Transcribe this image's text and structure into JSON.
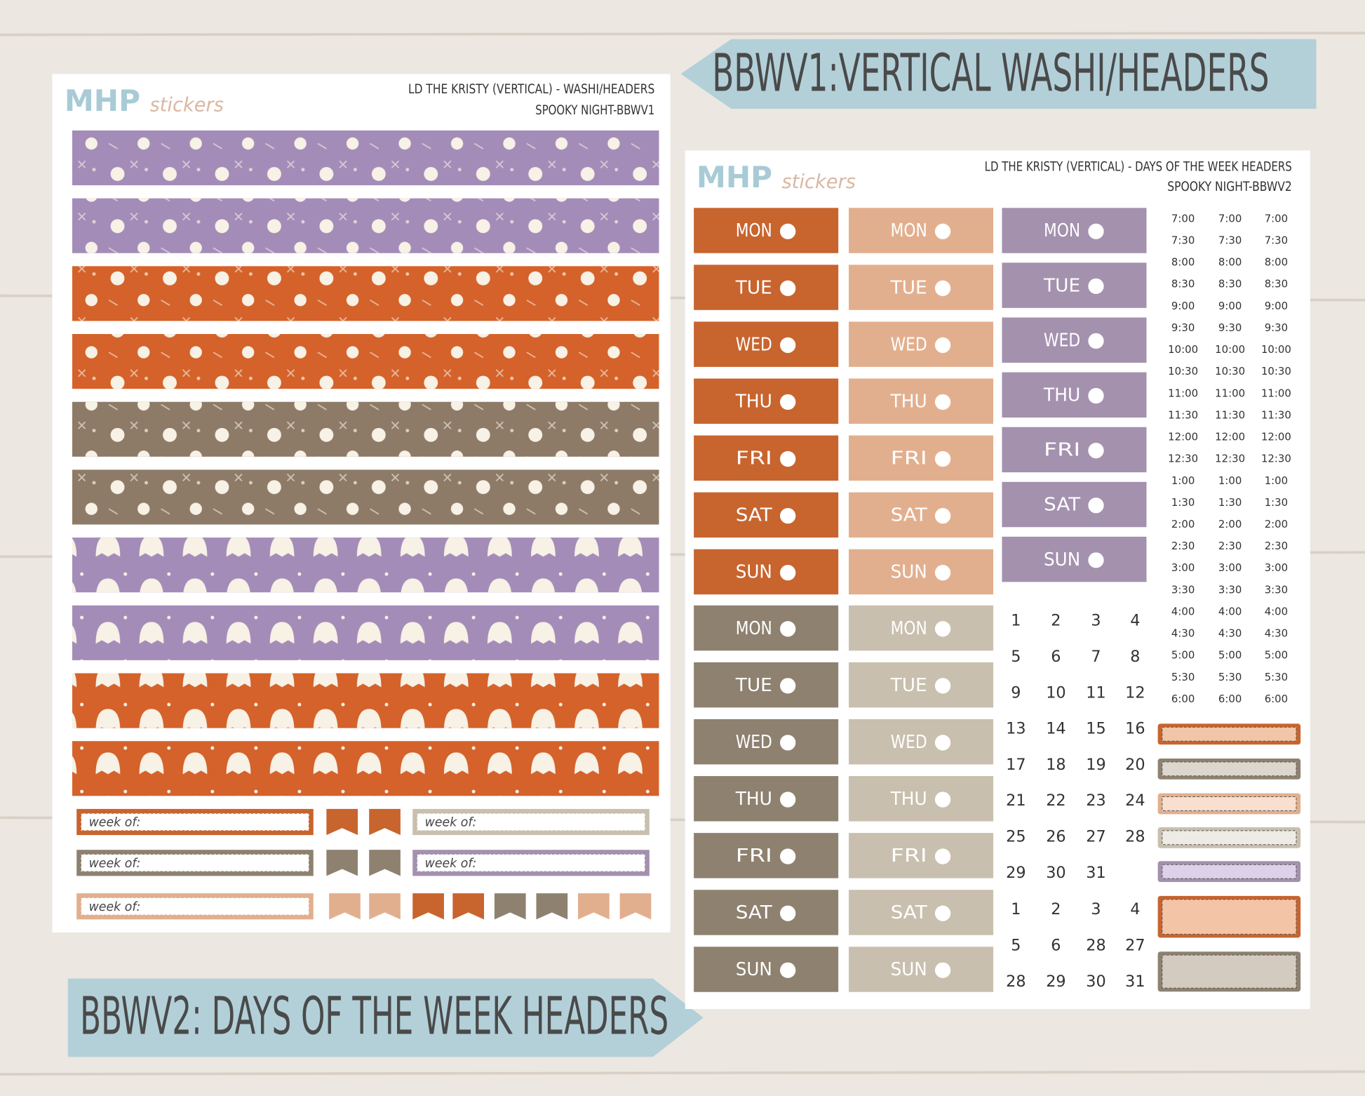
{
  "banners": [
    "BBWV1:VERTICAL WASHI/HEADERS",
    "BBWV2: DAYS OF THE WEEK HEADERS"
  ],
  "logo": {
    "brand": "MHP",
    "word": "stickers"
  },
  "sheet1": {
    "title": "LD THE KRISTY (VERTICAL) - WASHI/HEADERS",
    "code": "SPOOKY NIGHT-BBWV1",
    "week_label": "week of:"
  },
  "sheet2": {
    "title": "LD THE KRISTY (VERTICAL) - DAYS OF THE WEEK HEADERS",
    "code": "SPOOKY NIGHT-BBWV2",
    "days": [
      "MON",
      "TUE",
      "WED",
      "THU",
      "FRI",
      "SAT",
      "SUN"
    ],
    "times": [
      "7:00",
      "7:30",
      "8:00",
      "8:30",
      "9:00",
      "9:30",
      "10:00",
      "10:30",
      "11:00",
      "11:30",
      "12:00",
      "12:30",
      "1:00",
      "1:30",
      "2:00",
      "2:30",
      "3:00",
      "3:30",
      "4:00",
      "4:30",
      "5:00",
      "5:30",
      "6:00"
    ],
    "dates": [
      [
        1,
        2,
        3,
        4
      ],
      [
        5,
        6,
        7,
        8
      ],
      [
        9,
        10,
        11,
        12
      ],
      [
        13,
        14,
        15,
        16
      ],
      [
        17,
        18,
        19,
        20
      ],
      [
        21,
        22,
        23,
        24
      ],
      [
        25,
        26,
        27,
        28
      ],
      [
        29,
        30,
        31
      ]
    ],
    "extra_dates": [
      [
        1,
        2,
        3,
        4
      ],
      [
        5,
        6,
        28,
        27
      ],
      [
        28,
        29,
        30,
        31
      ]
    ]
  }
}
